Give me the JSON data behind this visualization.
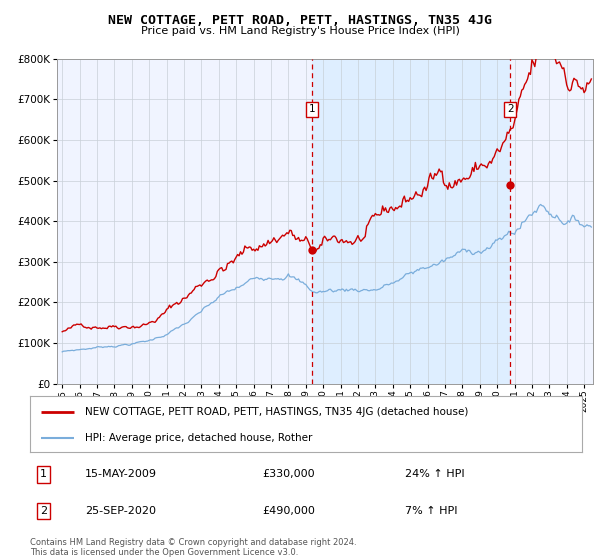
{
  "title": "NEW COTTAGE, PETT ROAD, PETT, HASTINGS, TN35 4JG",
  "subtitle": "Price paid vs. HM Land Registry's House Price Index (HPI)",
  "legend_line1": "NEW COTTAGE, PETT ROAD, PETT, HASTINGS, TN35 4JG (detached house)",
  "legend_line2": "HPI: Average price, detached house, Rother",
  "annotation1_label": "1",
  "annotation1_date": "15-MAY-2009",
  "annotation1_price": "£330,000",
  "annotation1_hpi": "24% ↑ HPI",
  "annotation1_year": 2009.37,
  "annotation1_value": 330000,
  "annotation2_label": "2",
  "annotation2_date": "25-SEP-2020",
  "annotation2_price": "£490,000",
  "annotation2_hpi": "7% ↑ HPI",
  "annotation2_year": 2020.75,
  "annotation2_value": 490000,
  "copyright": "Contains HM Land Registry data © Crown copyright and database right 2024.\nThis data is licensed under the Open Government Licence v3.0.",
  "red_color": "#cc0000",
  "blue_color": "#7aaddb",
  "shade_color": "#ddeeff",
  "plot_bg": "#f0f4ff",
  "ylim": [
    0,
    800000
  ],
  "xlim_start": 1994.7,
  "xlim_end": 2025.5,
  "red_seed": 42,
  "blue_seed": 7,
  "copyright_color": "#555555"
}
